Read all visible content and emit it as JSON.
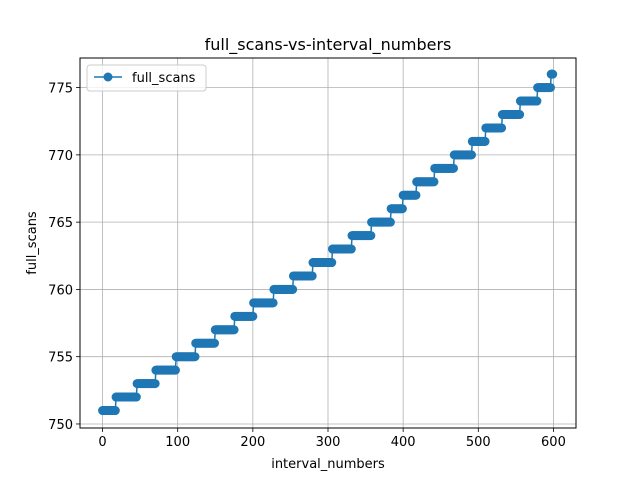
{
  "chart_data": {
    "type": "line",
    "title": "full_scans-vs-interval_numbers",
    "xlabel": "interval_numbers",
    "ylabel": "full_scans",
    "xlim": [
      -30,
      630
    ],
    "ylim": [
      749.7,
      777.2
    ],
    "xticks": [
      0,
      100,
      200,
      300,
      400,
      500,
      600
    ],
    "yticks": [
      750,
      755,
      760,
      765,
      770,
      775
    ],
    "grid": true,
    "legend_position": "top-left",
    "marker": "circle",
    "series": [
      {
        "name": "full_scans",
        "color": "#1f77b4",
        "steps": [
          {
            "value": 751,
            "x_start": 0,
            "x_end": 17
          },
          {
            "value": 752,
            "x_start": 18,
            "x_end": 45
          },
          {
            "value": 753,
            "x_start": 46,
            "x_end": 70
          },
          {
            "value": 754,
            "x_start": 71,
            "x_end": 97
          },
          {
            "value": 755,
            "x_start": 98,
            "x_end": 123
          },
          {
            "value": 756,
            "x_start": 124,
            "x_end": 149
          },
          {
            "value": 757,
            "x_start": 150,
            "x_end": 175
          },
          {
            "value": 758,
            "x_start": 176,
            "x_end": 200
          },
          {
            "value": 759,
            "x_start": 201,
            "x_end": 227
          },
          {
            "value": 760,
            "x_start": 228,
            "x_end": 253
          },
          {
            "value": 761,
            "x_start": 254,
            "x_end": 279
          },
          {
            "value": 762,
            "x_start": 280,
            "x_end": 305
          },
          {
            "value": 763,
            "x_start": 306,
            "x_end": 331
          },
          {
            "value": 764,
            "x_start": 332,
            "x_end": 357
          },
          {
            "value": 765,
            "x_start": 358,
            "x_end": 383
          },
          {
            "value": 766,
            "x_start": 384,
            "x_end": 399
          },
          {
            "value": 767,
            "x_start": 400,
            "x_end": 417
          },
          {
            "value": 768,
            "x_start": 418,
            "x_end": 441
          },
          {
            "value": 769,
            "x_start": 442,
            "x_end": 467
          },
          {
            "value": 770,
            "x_start": 468,
            "x_end": 491
          },
          {
            "value": 771,
            "x_start": 492,
            "x_end": 509
          },
          {
            "value": 772,
            "x_start": 510,
            "x_end": 531
          },
          {
            "value": 773,
            "x_start": 532,
            "x_end": 555
          },
          {
            "value": 774,
            "x_start": 556,
            "x_end": 578
          },
          {
            "value": 775,
            "x_start": 579,
            "x_end": 596
          },
          {
            "value": 776,
            "x_start": 597,
            "x_end": 599
          }
        ]
      }
    ]
  }
}
